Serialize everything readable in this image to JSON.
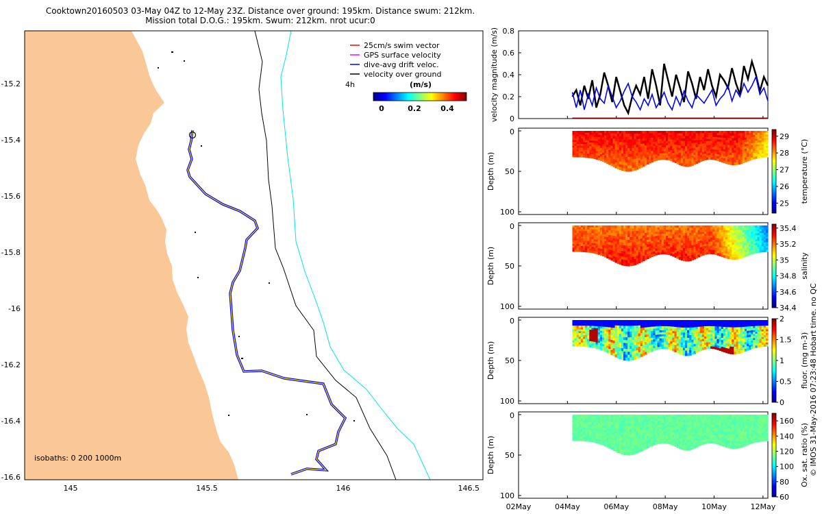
{
  "title": {
    "line1": "Cooktown20160503 03-May 04Z to 12-May 23Z. Distance over ground: 195km. Distance swum: 212km.",
    "line2": "Mission total D.O.G.: 195km. Swum: 212km. nrot ucur:0"
  },
  "map": {
    "xticks": [
      "145",
      "145.5",
      "146",
      "146.5"
    ],
    "yticks": [
      "-15.2",
      "-15.4",
      "-15.6",
      "-15.8",
      "-16",
      "-16.2",
      "-16.4",
      "-16.6"
    ],
    "legend": [
      "25cm/s swim vector",
      "GPS surface velocity",
      "dive-avg drift veloc.",
      "velocity over ground"
    ],
    "legend_colors": [
      "#ff0000",
      "#ff00ff",
      "#0000ff",
      "#000000"
    ],
    "time_label": "4h",
    "colorbar_unit": "(m/s)",
    "colorbar_ticks": [
      "0",
      "0.2",
      "0.4"
    ],
    "isobaths": "isobaths: 0   200  1000m",
    "land_color": "#f9c896"
  },
  "chart_data": [
    {
      "type": "line",
      "ylabel": "velocity magnitude (m/s)",
      "ylim": [
        0,
        0.8
      ],
      "yticks": [
        "0",
        "0.2",
        "0.4",
        "0.6",
        "0.8"
      ],
      "xlim_days": [
        1.0,
        11.2
      ],
      "x_days_start": 3.2,
      "x_days_end": 11.2,
      "series": [
        {
          "name": "velocity over ground",
          "color": "#000000",
          "values": [
            0.2,
            0.26,
            0.12,
            0.3,
            0.18,
            0.35,
            0.1,
            0.22,
            0.42,
            0.3,
            0.15,
            0.38,
            0.25,
            0.12,
            0.05,
            0.2,
            0.3,
            0.22,
            0.38,
            0.18,
            0.45,
            0.3,
            0.12,
            0.5,
            0.35,
            0.2,
            0.4,
            0.28,
            0.15,
            0.43,
            0.32,
            0.18,
            0.38,
            0.26,
            0.45,
            0.3,
            0.2,
            0.4,
            0.35,
            0.28,
            0.46,
            0.32,
            0.22,
            0.48,
            0.36,
            0.52,
            0.4,
            0.25,
            0.38,
            0.3
          ]
        },
        {
          "name": "dive-avg drift veloc.",
          "color": "#0000ff",
          "values": [
            0.24,
            0.1,
            0.26,
            0.08,
            0.22,
            0.12,
            0.28,
            0.18,
            0.14,
            0.3,
            0.2,
            0.1,
            0.16,
            0.25,
            0.32,
            0.2,
            0.15,
            0.08,
            0.18,
            0.12,
            0.22,
            0.1,
            0.16,
            0.24,
            0.14,
            0.08,
            0.2,
            0.12,
            0.25,
            0.16,
            0.1,
            0.22,
            0.18,
            0.14,
            0.2,
            0.26,
            0.12,
            0.18,
            0.22,
            0.3,
            0.16,
            0.26,
            0.2,
            0.32,
            0.24,
            0.3,
            0.38,
            0.22,
            0.28,
            0.16
          ]
        }
      ]
    },
    {
      "type": "heatmap",
      "variable": "temperature",
      "ylabel": "Depth (m)",
      "clabel": "temperature (°C)",
      "clim": [
        24.4,
        29.4
      ],
      "cticks": [
        "25",
        "26",
        "27",
        "28",
        "29"
      ],
      "dominant_value": 28.2
    },
    {
      "type": "heatmap",
      "variable": "salinity",
      "ylabel": "Depth (m)",
      "clabel": "salinity",
      "clim": [
        34.4,
        35.45
      ],
      "cticks": [
        "34.4",
        "34.6",
        "34.8",
        "35",
        "35.2",
        "35.4"
      ],
      "dominant_value": 35.15
    },
    {
      "type": "heatmap",
      "variable": "fluor",
      "ylabel": "Depth (m)",
      "clabel": "fluor. (mg m-3)",
      "clim": [
        0,
        2
      ],
      "cticks": [
        "0",
        "0.5",
        "1",
        "1.5",
        "2"
      ],
      "dominant_value": 1.0
    },
    {
      "type": "heatmap",
      "variable": "oxygen",
      "ylabel": "Depth (m)",
      "clabel": "Ox. sat. ratio (%)",
      "clim": [
        60,
        170
      ],
      "cticks": [
        "60",
        "80",
        "100",
        "120",
        "140",
        "160"
      ],
      "dominant_value": 113
    }
  ],
  "section_yticks": [
    "0",
    "50",
    "100"
  ],
  "date_ticks": [
    "02May",
    "04May",
    "06May",
    "08May",
    "10May",
    "12May"
  ],
  "side_label": "© IMOS 31-May-2016 07:23:48 Hobart time. no QC"
}
